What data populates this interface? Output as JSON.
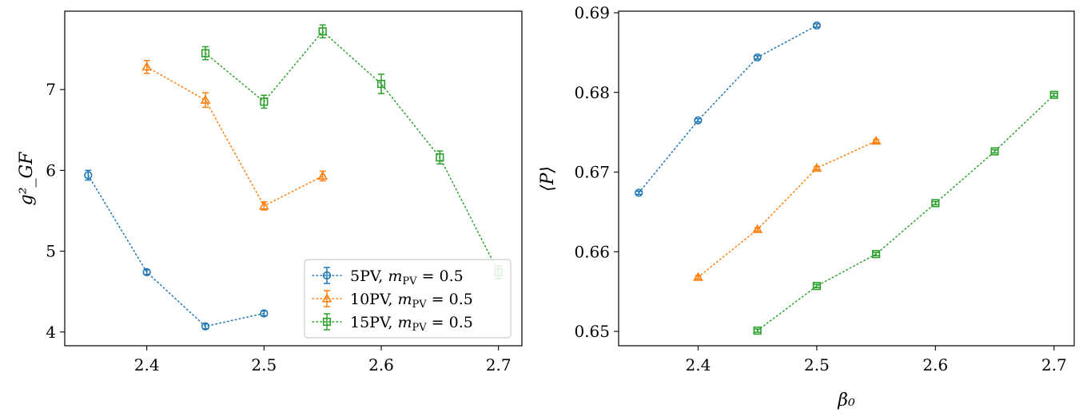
{
  "chart_data": [
    {
      "type": "scatter",
      "panel": "left",
      "title": "",
      "xlabel": "",
      "ylabel": "g²_GF",
      "xlim": [
        2.33,
        2.72
      ],
      "ylim": [
        3.83,
        7.97
      ],
      "xticks": [
        2.4,
        2.5,
        2.6,
        2.7
      ],
      "xtick_labels": [
        "2.4",
        "2.5",
        "2.6",
        "2.7"
      ],
      "yticks": [
        4,
        5,
        6,
        7
      ],
      "ytick_labels": [
        "4",
        "5",
        "6",
        "7"
      ],
      "legend_placement": "lower-right",
      "series": [
        {
          "name": "5PV, m_PV = 0.5",
          "label_main": "5PV, ",
          "label_math": "m",
          "label_sub": "PV",
          "label_tail": " = 0.5",
          "color": "#1f77b4",
          "marker": "circle",
          "x": [
            2.35,
            2.4,
            2.45,
            2.5
          ],
          "y": [
            5.94,
            4.74,
            4.07,
            4.23
          ],
          "err": [
            0.06,
            0.03,
            0.03,
            0.03
          ]
        },
        {
          "name": "10PV, m_PV = 0.5",
          "label_main": "10PV, ",
          "label_math": "m",
          "label_sub": "PV",
          "label_tail": " = 0.5",
          "color": "#ff7f0e",
          "marker": "triangle",
          "x": [
            2.4,
            2.45,
            2.5,
            2.55
          ],
          "y": [
            7.28,
            6.87,
            5.56,
            5.93
          ],
          "err": [
            0.08,
            0.09,
            0.05,
            0.06
          ]
        },
        {
          "name": "15PV, m_PV = 0.5",
          "label_main": "15PV, ",
          "label_math": "m",
          "label_sub": "PV",
          "label_tail": " = 0.5",
          "color": "#2ca02c",
          "marker": "square",
          "x": [
            2.45,
            2.5,
            2.55,
            2.6,
            2.65,
            2.7
          ],
          "y": [
            7.45,
            6.85,
            7.72,
            7.07,
            6.16,
            4.74
          ],
          "err": [
            0.08,
            0.08,
            0.08,
            0.12,
            0.08,
            0.08
          ]
        }
      ]
    },
    {
      "type": "scatter",
      "panel": "right",
      "title": "",
      "xlabel": "β₀",
      "ylabel": "⟨P⟩",
      "xlim": [
        2.333,
        2.717
      ],
      "ylim": [
        0.6482,
        0.6902
      ],
      "xticks": [
        2.4,
        2.5,
        2.6,
        2.7
      ],
      "xtick_labels": [
        "2.4",
        "2.5",
        "2.6",
        "2.7"
      ],
      "yticks": [
        0.65,
        0.66,
        0.67,
        0.68,
        0.69
      ],
      "ytick_labels": [
        "0.65",
        "0.66",
        "0.67",
        "0.68",
        "0.69"
      ],
      "series": [
        {
          "name": "5PV",
          "color": "#1f77b4",
          "marker": "circle",
          "x": [
            2.35,
            2.4,
            2.45,
            2.5
          ],
          "y": [
            0.6674,
            0.6765,
            0.6844,
            0.6884
          ],
          "err": [
            0.0002,
            0.0002,
            0.0002,
            0.0002
          ]
        },
        {
          "name": "10PV",
          "color": "#ff7f0e",
          "marker": "triangle",
          "x": [
            2.4,
            2.45,
            2.5,
            2.55
          ],
          "y": [
            0.6568,
            0.6628,
            0.6705,
            0.6739
          ],
          "err": [
            0.0002,
            0.0002,
            0.0002,
            0.0002
          ]
        },
        {
          "name": "15PV",
          "color": "#2ca02c",
          "marker": "square",
          "x": [
            2.45,
            2.5,
            2.55,
            2.6,
            2.65,
            2.7
          ],
          "y": [
            0.6501,
            0.6557,
            0.6597,
            0.6661,
            0.6726,
            0.6797
          ],
          "err": [
            0.0002,
            0.0002,
            0.0002,
            0.0002,
            0.0002,
            0.0002
          ]
        }
      ]
    }
  ]
}
